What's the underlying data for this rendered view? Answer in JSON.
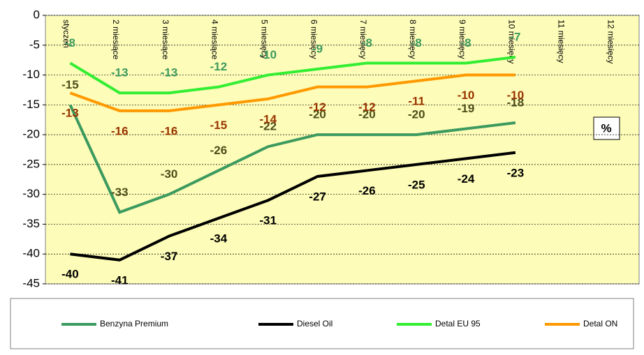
{
  "chart_data": {
    "type": "line",
    "categories": [
      "styczeń",
      "2 miesiące",
      "3 miesiące",
      "4 miesiące",
      "5 miesięcy",
      "6 miesięcy",
      "7 miesięcy",
      "8 miesięcy",
      "9 miesięcy",
      "10 miesięcy",
      "11 miesięcy",
      "12 miesięcy"
    ],
    "series": [
      {
        "name": "Benzyna Premium",
        "color": "#3c9a5f",
        "label_color": "#4d4d1a",
        "label_side": "above",
        "values": [
          -15,
          -33,
          -30,
          -26,
          -22,
          -20,
          -20,
          -20,
          -19,
          -18,
          null,
          null
        ]
      },
      {
        "name": "Diesel Oil",
        "color": "#000000",
        "label_color": "#000000",
        "label_side": "below",
        "values": [
          -40,
          -41,
          -37,
          -34,
          -31,
          -27,
          -26,
          -25,
          -24,
          -23,
          null,
          null
        ]
      },
      {
        "name": "Detal EU 95",
        "color": "#33ee33",
        "label_color": "#3c9a5f",
        "label_side": "above",
        "values": [
          -8,
          -13,
          -13,
          -12,
          -10,
          -9,
          -8,
          -8,
          -8,
          -7,
          null,
          null
        ]
      },
      {
        "name": "Detal ON",
        "color": "#ff9900",
        "label_color": "#993300",
        "label_side": "below",
        "values": [
          -13,
          -16,
          -16,
          -15,
          -14,
          -12,
          -12,
          -11,
          -10,
          -10,
          null,
          null
        ]
      }
    ],
    "ylim": [
      -45,
      0
    ],
    "yticks": [
      0,
      -5,
      -10,
      -15,
      -20,
      -25,
      -30,
      -35,
      -40,
      -45
    ],
    "grid": true,
    "background": "#fdfcb8",
    "legend": "bottom",
    "unit_label": "%"
  }
}
